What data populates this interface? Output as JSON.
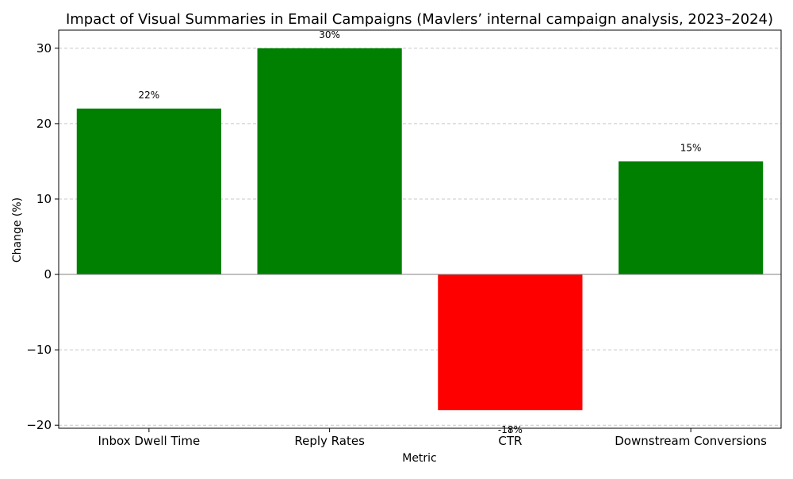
{
  "chart_data": {
    "type": "bar",
    "title": "Impact of Visual Summaries in Email Campaigns (Mavlers’ internal campaign analysis, 2023–2024)",
    "xlabel": "Metric",
    "ylabel": "Change (%)",
    "categories": [
      "Inbox Dwell Time",
      "Reply Rates",
      "CTR",
      "Downstream Conversions"
    ],
    "values": [
      22,
      30,
      -18,
      15
    ],
    "data_labels": [
      "22%",
      "30%",
      "-18%",
      "15%"
    ],
    "ylim": [
      -20.4,
      32.4
    ],
    "yticks": [
      -20,
      -10,
      0,
      10,
      20,
      30
    ],
    "ytick_labels": [
      "−20",
      "−10",
      "0",
      "10",
      "20",
      "30"
    ],
    "grid": "y-dashed",
    "colors": {
      "positive": "#008000",
      "negative": "#ff0000",
      "grid": "#c8c8c8",
      "zero_line": "#808080",
      "axis": "#000000"
    }
  }
}
